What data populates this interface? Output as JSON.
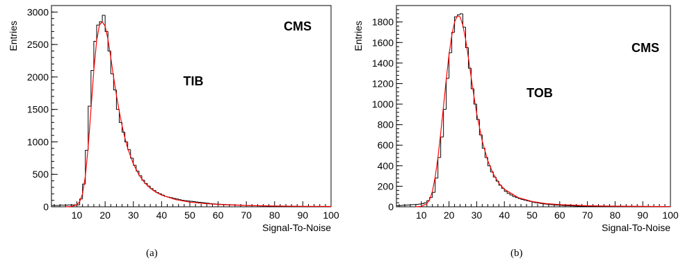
{
  "chart_data": [
    {
      "id": "a",
      "type": "histogram",
      "caption": "(a)",
      "label_cms": "CMS",
      "label_detector": "TIB",
      "xlabel": "Signal-To-Noise",
      "ylabel": "Entries",
      "xlim": [
        1,
        100
      ],
      "ylim": [
        0,
        3100
      ],
      "xticks": [
        10,
        20,
        30,
        40,
        50,
        60,
        70,
        80,
        90,
        100
      ],
      "xtick_labels": [
        "10",
        "20",
        "30",
        "40",
        "50",
        "60",
        "70",
        "80",
        "90",
        "100"
      ],
      "yticks": [
        0,
        500,
        1000,
        1500,
        2000,
        2500,
        3000
      ],
      "ytick_labels": [
        "0",
        "500",
        "1000",
        "1500",
        "2000",
        "2500",
        "3000"
      ],
      "bin_width": 1,
      "bin_start": 1,
      "counts": [
        20,
        20,
        20,
        25,
        25,
        25,
        30,
        30,
        30,
        30,
        120,
        350,
        870,
        1550,
        2100,
        2550,
        2800,
        2850,
        2950,
        2700,
        2400,
        2050,
        1800,
        1500,
        1300,
        1150,
        1000,
        880,
        750,
        640,
        550,
        480,
        410,
        360,
        320,
        280,
        250,
        220,
        200,
        180,
        160,
        150,
        140,
        130,
        120,
        110,
        100,
        95,
        90,
        85,
        80,
        75,
        70,
        65,
        60,
        55,
        50,
        45,
        42,
        40,
        38,
        36,
        34,
        32,
        30,
        28,
        26,
        24,
        22,
        20,
        18,
        17,
        16,
        15,
        14,
        13,
        12,
        11,
        10,
        10,
        9,
        9,
        8,
        8,
        7,
        7,
        6,
        6,
        5,
        5,
        5,
        4,
        4,
        4,
        3,
        3,
        3,
        3,
        2,
        2
      ],
      "fit": {
        "color": "#ff0000",
        "x": [
          6,
          8,
          10,
          11,
          12,
          13,
          14,
          15,
          16,
          17,
          18,
          19,
          20,
          21,
          22,
          23,
          24,
          25,
          26,
          27,
          28,
          30,
          32,
          34,
          36,
          38,
          40,
          45,
          50,
          55,
          60,
          70,
          80,
          90,
          100
        ],
        "y": [
          0,
          5,
          30,
          80,
          200,
          470,
          920,
          1500,
          2100,
          2560,
          2800,
          2850,
          2780,
          2580,
          2300,
          2000,
          1720,
          1470,
          1250,
          1060,
          900,
          660,
          490,
          370,
          285,
          225,
          180,
          110,
          72,
          50,
          36,
          20,
          12,
          8,
          5
        ]
      }
    },
    {
      "id": "b",
      "type": "histogram",
      "caption": "(b)",
      "label_cms": "CMS",
      "label_detector": "TOB",
      "xlabel": "Signal-To-Noise",
      "ylabel": "Entries",
      "xlim": [
        1,
        100
      ],
      "ylim": [
        0,
        1960
      ],
      "xticks": [
        10,
        20,
        30,
        40,
        50,
        60,
        70,
        80,
        90,
        100
      ],
      "xtick_labels": [
        "10",
        "20",
        "30",
        "40",
        "50",
        "60",
        "70",
        "80",
        "90",
        "100"
      ],
      "yticks": [
        0,
        200,
        400,
        600,
        800,
        1000,
        1200,
        1400,
        1600,
        1800
      ],
      "ytick_labels": [
        "0",
        "200",
        "400",
        "600",
        "800",
        "1000",
        "1200",
        "1400",
        "1600",
        "1800"
      ],
      "bin_width": 1,
      "bin_start": 1,
      "counts": [
        10,
        12,
        14,
        16,
        18,
        20,
        22,
        24,
        26,
        30,
        40,
        60,
        90,
        140,
        280,
        480,
        680,
        950,
        1250,
        1500,
        1700,
        1850,
        1870,
        1880,
        1750,
        1550,
        1350,
        1150,
        1000,
        850,
        700,
        570,
        480,
        400,
        340,
        290,
        250,
        210,
        180,
        150,
        130,
        115,
        100,
        90,
        80,
        72,
        65,
        58,
        52,
        46,
        40,
        36,
        32,
        28,
        25,
        22,
        20,
        18,
        16,
        14,
        12,
        11,
        10,
        9,
        8,
        7,
        6,
        6,
        5,
        5,
        4,
        4,
        4,
        3,
        3,
        3,
        3,
        2,
        2,
        2,
        2,
        2,
        2,
        1,
        1,
        1,
        1,
        1,
        1,
        1,
        1,
        1,
        1,
        1,
        1,
        1,
        1,
        1,
        1
      ],
      "fit": {
        "color": "#ff0000",
        "x": [
          8,
          10,
          12,
          13,
          14,
          15,
          16,
          17,
          18,
          19,
          20,
          21,
          22,
          23,
          24,
          25,
          26,
          27,
          28,
          29,
          30,
          32,
          34,
          36,
          38,
          40,
          45,
          50,
          55,
          60,
          70,
          80,
          90,
          100
        ],
        "y": [
          0,
          5,
          30,
          70,
          150,
          290,
          480,
          720,
          980,
          1240,
          1480,
          1670,
          1800,
          1860,
          1850,
          1770,
          1630,
          1450,
          1260,
          1080,
          910,
          640,
          450,
          320,
          230,
          170,
          90,
          52,
          32,
          21,
          10,
          6,
          4,
          2
        ]
      }
    }
  ]
}
